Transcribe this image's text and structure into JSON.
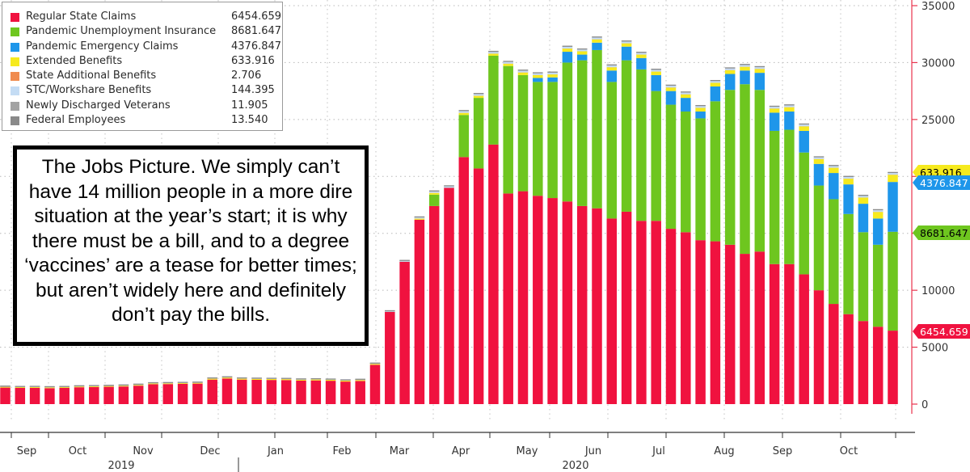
{
  "chart_data": {
    "type": "bar",
    "stacked": true,
    "x_axis": {
      "month_labels": [
        "Sep",
        "Oct",
        "Nov",
        "Dec",
        "Jan",
        "Feb",
        "Mar",
        "Apr",
        "May",
        "Jun",
        "Jul",
        "Aug",
        "Sep",
        "Oct"
      ],
      "year_labels": [
        "2019",
        "2020"
      ]
    },
    "y_axis": {
      "ticks": [
        0,
        5000,
        10000,
        15000,
        20000,
        25000,
        30000,
        35000
      ],
      "ylim": [
        0,
        35000
      ],
      "position": "right"
    },
    "grid": true,
    "legend_position": "top-left",
    "series": [
      {
        "name": "Regular State Claims",
        "legend_value": "6454.659",
        "color": "#f0123f",
        "values": [
          1450,
          1420,
          1430,
          1400,
          1420,
          1480,
          1500,
          1520,
          1550,
          1620,
          1750,
          1760,
          1780,
          1800,
          2150,
          2250,
          2150,
          2130,
          2120,
          2110,
          2060,
          2080,
          2050,
          1980,
          2030,
          3450,
          8100,
          12500,
          16200,
          17400,
          19000,
          21700,
          20700,
          22800,
          18500,
          18700,
          18300,
          18100,
          17800,
          17400,
          17200,
          16300,
          16900,
          16100,
          16100,
          15400,
          15100,
          14400,
          14300,
          14000,
          13200,
          13400,
          12300,
          12300,
          11400,
          10000,
          8800,
          7900,
          7300,
          6800,
          6454.659
        ]
      },
      {
        "name": "Pandemic Unemployment Insurance",
        "legend_value": "8681.647",
        "color": "#6ec61f",
        "values": [
          0,
          0,
          0,
          0,
          0,
          0,
          0,
          0,
          0,
          0,
          0,
          0,
          0,
          0,
          0,
          0,
          0,
          0,
          0,
          0,
          0,
          0,
          0,
          0,
          0,
          0,
          0,
          0,
          0,
          1000,
          0,
          3700,
          6200,
          7800,
          11200,
          10200,
          10000,
          10200,
          12200,
          12800,
          13900,
          12000,
          13300,
          13300,
          11400,
          10900,
          10600,
          10700,
          12300,
          13600,
          14900,
          14200,
          11700,
          11800,
          10700,
          9200,
          9200,
          8800,
          7800,
          7200,
          8681.647
        ]
      },
      {
        "name": "Pandemic Emergency Claims",
        "legend_value": "4376.847",
        "color": "#1e96ea",
        "values": [
          0,
          0,
          0,
          0,
          0,
          0,
          0,
          0,
          0,
          0,
          0,
          0,
          0,
          0,
          0,
          0,
          0,
          0,
          0,
          0,
          0,
          0,
          0,
          0,
          0,
          0,
          0,
          0,
          0,
          0,
          0,
          0,
          0,
          0,
          0,
          0,
          350,
          400,
          950,
          500,
          650,
          1000,
          1200,
          1000,
          1400,
          1200,
          1200,
          600,
          1300,
          1400,
          1200,
          1500,
          1600,
          1600,
          1900,
          1900,
          2300,
          2600,
          2500,
          2300,
          4376.847
        ]
      },
      {
        "name": "Extended Benefits",
        "legend_value": "633.916",
        "color": "#f6ea1e",
        "values": [
          60,
          60,
          60,
          60,
          60,
          60,
          60,
          60,
          60,
          60,
          60,
          60,
          60,
          60,
          80,
          80,
          80,
          80,
          80,
          80,
          80,
          80,
          80,
          80,
          80,
          80,
          0,
          0,
          90,
          150,
          0,
          180,
          180,
          180,
          200,
          230,
          250,
          260,
          280,
          290,
          290,
          290,
          290,
          300,
          310,
          310,
          310,
          320,
          320,
          330,
          330,
          340,
          360,
          380,
          400,
          420,
          460,
          500,
          540,
          580,
          633.916
        ]
      },
      {
        "name": "State Additional Benefits",
        "legend_value": "2.706",
        "color": "#f08c50",
        "values": [
          2,
          2,
          2,
          2,
          2,
          2,
          2,
          2,
          2,
          2,
          2,
          2,
          2,
          2,
          2,
          2,
          2,
          2,
          2,
          2,
          2,
          2,
          2,
          2,
          2,
          2,
          2,
          2,
          2,
          2,
          2,
          2,
          2,
          2,
          2,
          2,
          2,
          2,
          2,
          2,
          2,
          2,
          2,
          2,
          2,
          2,
          2,
          2,
          2,
          2,
          2,
          2,
          2,
          2,
          2,
          2,
          2,
          2,
          2,
          2,
          2.706
        ]
      },
      {
        "name": "STC/Workshare Benefits",
        "legend_value": "144.395",
        "color": "#c4dcf4",
        "values": [
          20,
          20,
          20,
          20,
          20,
          20,
          20,
          20,
          20,
          20,
          20,
          20,
          20,
          20,
          20,
          20,
          20,
          20,
          20,
          20,
          20,
          20,
          20,
          20,
          20,
          20,
          50,
          70,
          100,
          120,
          120,
          150,
          150,
          150,
          150,
          150,
          150,
          150,
          150,
          150,
          150,
          150,
          150,
          150,
          150,
          150,
          150,
          150,
          150,
          150,
          150,
          150,
          150,
          150,
          150,
          150,
          145,
          145,
          145,
          145,
          144.395
        ]
      },
      {
        "name": "Newly Discharged Veterans",
        "legend_value": "11.905",
        "color": "#a3a3a3",
        "values": [
          8,
          8,
          8,
          8,
          8,
          8,
          8,
          8,
          8,
          8,
          8,
          8,
          8,
          8,
          8,
          8,
          8,
          8,
          8,
          8,
          8,
          8,
          8,
          8,
          8,
          8,
          10,
          10,
          10,
          12,
          12,
          12,
          12,
          12,
          12,
          12,
          12,
          12,
          12,
          12,
          12,
          12,
          12,
          12,
          12,
          12,
          12,
          12,
          12,
          12,
          12,
          12,
          12,
          12,
          12,
          12,
          12,
          12,
          12,
          12,
          11.905
        ]
      },
      {
        "name": "Federal Employees",
        "legend_value": "13.540",
        "color": "#8a8a8a",
        "values": [
          10,
          10,
          10,
          10,
          10,
          10,
          10,
          10,
          10,
          10,
          10,
          10,
          10,
          10,
          10,
          10,
          10,
          10,
          10,
          10,
          10,
          10,
          10,
          10,
          10,
          10,
          10,
          10,
          10,
          12,
          12,
          12,
          12,
          12,
          12,
          12,
          12,
          12,
          12,
          12,
          12,
          12,
          12,
          12,
          12,
          12,
          12,
          12,
          12,
          12,
          12,
          12,
          12,
          12,
          12,
          12,
          12,
          12,
          12,
          12,
          13.54
        ]
      }
    ],
    "last_value_tags": [
      {
        "text": "633.916",
        "color": "#f6ea1e"
      },
      {
        "text": "4376.847",
        "color": "#1e96ea"
      },
      {
        "text": "8681.647",
        "color": "#6ec61f"
      },
      {
        "text": "6454.659",
        "color": "#f0123f"
      }
    ]
  },
  "annotation": {
    "text": "The Jobs Picture. We simply can’t have 14 million people in a more dire situation at the year’s start; it is why there must be a bill, and to a degree ‘vaccines’ are a tease for better times; but aren’t widely here and definitely don’t pay the bills."
  }
}
